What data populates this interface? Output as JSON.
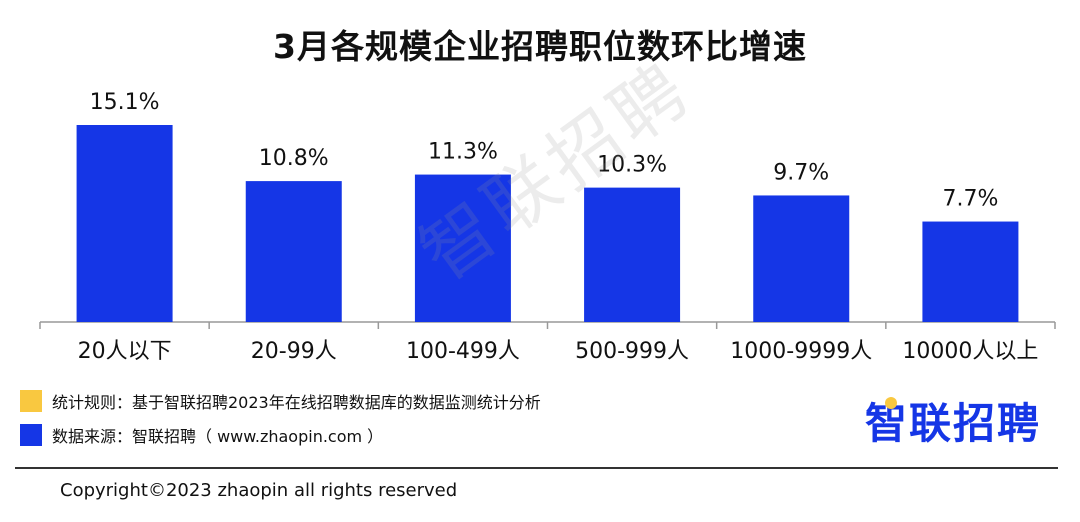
{
  "chart_data": {
    "type": "bar",
    "title": "3月各规模企业招聘职位数环比增速",
    "categories": [
      "20人以下",
      "20-99人",
      "100-499人",
      "500-999人",
      "1000-9999人",
      "10000人以上"
    ],
    "values": [
      15.1,
      10.8,
      11.3,
      10.3,
      9.7,
      7.7
    ],
    "data_labels": [
      "15.1%",
      "10.8%",
      "11.3%",
      "10.3%",
      "9.7%",
      "7.7%"
    ],
    "unit": "%",
    "ylim": [
      0,
      15.1
    ],
    "grid": false,
    "bar_color": "#1536e6"
  },
  "watermark": "智联招聘",
  "footnotes": [
    {
      "color": "#f9c840",
      "text": "统计规则：基于智联招聘2023年在线招聘数据库的数据监测统计分析"
    },
    {
      "color": "#1536e6",
      "text": "数据来源：智联招聘（ www.zhaopin.com ）"
    }
  ],
  "brand": {
    "text": "智联招聘",
    "color": "#1536e6",
    "dot_color": "#f9c840"
  },
  "copyright": "Copyright©2023 zhaopin all rights reserved"
}
